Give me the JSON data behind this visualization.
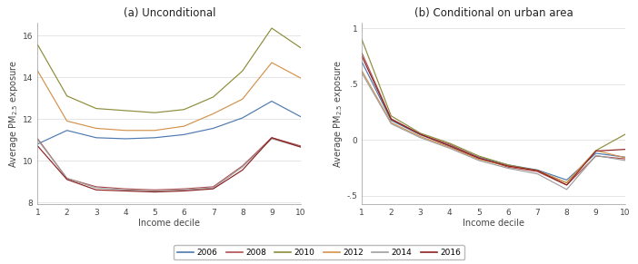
{
  "title_a": "(a) Unconditional",
  "title_b": "(b) Conditional on urban area",
  "xlabel": "Income decile",
  "ylabel_a": "Average PM$_{2.5}$ exposure",
  "ylabel_b": "Average PM$_{2.5}$ exposure",
  "x": [
    1,
    2,
    3,
    4,
    5,
    6,
    7,
    8,
    9,
    10
  ],
  "years": [
    "2006",
    "2008",
    "2010",
    "2012",
    "2014",
    "2016"
  ],
  "colors": [
    "#4d79b0",
    "#b05050",
    "#8c8c3a",
    "#d4924a",
    "#9e9e9e",
    "#8b2020"
  ],
  "data_a": [
    [
      10.8,
      11.45,
      11.1,
      11.05,
      11.1,
      11.25,
      11.55,
      12.05,
      12.85,
      12.1
    ],
    [
      11.05,
      9.15,
      8.75,
      8.65,
      8.6,
      8.65,
      8.75,
      9.75,
      11.1,
      10.7
    ],
    [
      15.55,
      13.1,
      12.5,
      12.4,
      12.3,
      12.45,
      13.05,
      14.3,
      16.35,
      15.4
    ],
    [
      14.3,
      11.9,
      11.55,
      11.45,
      11.45,
      11.65,
      12.25,
      12.95,
      14.7,
      13.95
    ],
    [
      11.0,
      9.15,
      8.7,
      8.6,
      8.55,
      8.6,
      8.7,
      9.7,
      11.05,
      10.65
    ],
    [
      10.7,
      9.1,
      8.6,
      8.55,
      8.5,
      8.55,
      8.65,
      9.55,
      11.1,
      10.65
    ]
  ],
  "data_b": [
    [
      0.7,
      0.175,
      0.045,
      -0.05,
      -0.155,
      -0.225,
      -0.27,
      -0.36,
      -0.12,
      -0.155
    ],
    [
      0.78,
      0.19,
      0.05,
      -0.04,
      -0.16,
      -0.245,
      -0.285,
      -0.405,
      -0.145,
      -0.17
    ],
    [
      0.9,
      0.215,
      0.06,
      -0.03,
      -0.145,
      -0.225,
      -0.275,
      -0.385,
      -0.095,
      0.05
    ],
    [
      0.62,
      0.155,
      0.03,
      -0.065,
      -0.175,
      -0.235,
      -0.275,
      -0.385,
      -0.095,
      -0.16
    ],
    [
      0.6,
      0.145,
      0.02,
      -0.075,
      -0.185,
      -0.255,
      -0.305,
      -0.445,
      -0.14,
      -0.185
    ],
    [
      0.75,
      0.185,
      0.05,
      -0.055,
      -0.165,
      -0.235,
      -0.275,
      -0.405,
      -0.1,
      -0.085
    ]
  ],
  "ylim_a": [
    7.9,
    16.6
  ],
  "yticks_a": [
    8,
    10,
    12,
    14,
    16
  ],
  "ytick_labels_a": [
    "8",
    "10",
    "12",
    "14",
    "16"
  ],
  "ylim_b": [
    -0.58,
    1.05
  ],
  "yticks_b": [
    -0.5,
    0,
    0.5,
    1
  ],
  "ytick_labels_b": [
    "-.5",
    "0",
    ".5",
    "1"
  ],
  "bg_color": "#ffffff",
  "grid_color": "#e0e0e0",
  "spine_color": "#999999",
  "tick_color": "#444444",
  "title_fontsize": 8.5,
  "label_fontsize": 7,
  "tick_fontsize": 6.5,
  "legend_fontsize": 6.5,
  "linewidth": 0.85
}
